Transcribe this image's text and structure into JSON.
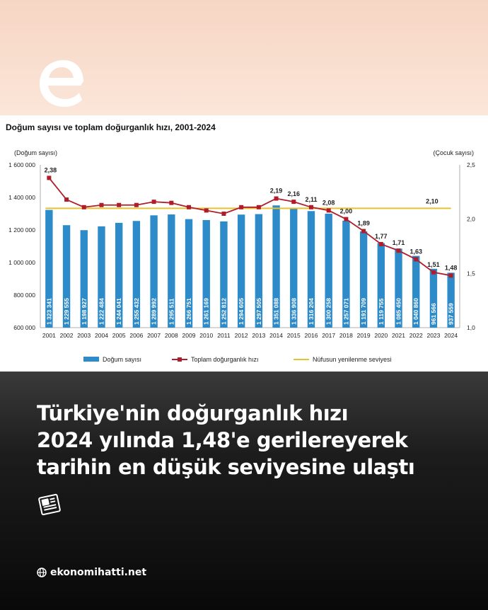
{
  "brand": {
    "logo_icon": "e-letter-logo-icon",
    "site": "ekonomihatti.net",
    "site_icon": "globe-icon"
  },
  "headline": {
    "lines": [
      "Türkiye'nin doğurganlık hızı",
      "2024 yılında 1,48'e gerilereyerek",
      "tarihin en düşük seviyesine ulaştı"
    ],
    "icon": "newspaper-icon"
  },
  "colors": {
    "bars": "#2e8bc9",
    "line": "#b01d2a",
    "replacement": "#e8c12e",
    "top_band": "#f6d5c3"
  },
  "chart_data": {
    "type": "bar",
    "title": "Doğum sayısı ve toplam doğurganlık hızı, 2001-2024",
    "ylabel": "(Doğum sayısı)",
    "y2label": "(Çocuk sayısı)",
    "ylim": [
      600000,
      1600000
    ],
    "yticks": [
      "600 000",
      "800 000",
      "1 000 000",
      "1 200 000",
      "1 400 000",
      "1 600 000"
    ],
    "ytick_values": [
      600000,
      800000,
      1000000,
      1200000,
      1400000,
      1600000
    ],
    "y2lim": [
      1.0,
      2.5
    ],
    "y2ticks": [
      "1,0",
      "1,5",
      "2,0",
      "2,5"
    ],
    "y2tick_values": [
      1.0,
      1.5,
      2.0,
      2.5
    ],
    "categories": [
      "2001",
      "2002",
      "2003",
      "2004",
      "2005",
      "2006",
      "2007",
      "2008",
      "2009",
      "2010",
      "2011",
      "2012",
      "2013",
      "2014",
      "2015",
      "2016",
      "2017",
      "2018",
      "2019",
      "2020",
      "2021",
      "2022",
      "2023",
      "2024"
    ],
    "series": [
      {
        "name": "Doğum sayısı",
        "values": [
          1323341,
          1229555,
          1198927,
          1222484,
          1244041,
          1255432,
          1289992,
          1295511,
          1266751,
          1261169,
          1252812,
          1294605,
          1297505,
          1351088,
          1336908,
          1316204,
          1300258,
          1257071,
          1191709,
          1119755,
          1085450,
          1040860,
          961566,
          937559
        ],
        "labels": [
          "1 323 341",
          "1 229 555",
          "1 198 927",
          "1 222 484",
          "1 244 041",
          "1 255 432",
          "1 289 992",
          "1 295 511",
          "1 266 751",
          "1 261 169",
          "1 252 812",
          "1 294 605",
          "1 297 505",
          "1 351 088",
          "1 336 908",
          "1 316 204",
          "1 300 258",
          "1 257 071",
          "1 191 709",
          "1 119 755",
          "1 085 450",
          "1 040 860",
          "961 566",
          "937 559"
        ]
      },
      {
        "name": "Toplam doğurganlık hızı",
        "axis": "right",
        "values": [
          2.38,
          2.18,
          2.11,
          2.13,
          2.13,
          2.13,
          2.16,
          2.15,
          2.11,
          2.08,
          2.05,
          2.11,
          2.11,
          2.19,
          2.16,
          2.11,
          2.08,
          2.0,
          1.89,
          1.77,
          1.71,
          1.63,
          1.51,
          1.48
        ],
        "labels": [
          "2,38",
          "",
          "",
          "",
          "",
          "",
          "",
          "",
          "",
          "",
          "",
          "",
          "",
          "2,19",
          "2,16",
          "2,11",
          "2,08",
          "2,00",
          "1,89",
          "1,77",
          "1,71",
          "1,63",
          "1,51",
          "1,48"
        ]
      },
      {
        "name": "Nüfusun yenilenme seviyesi",
        "axis": "right",
        "value": 2.1,
        "label": "2,10"
      }
    ],
    "legend": "bottom"
  }
}
